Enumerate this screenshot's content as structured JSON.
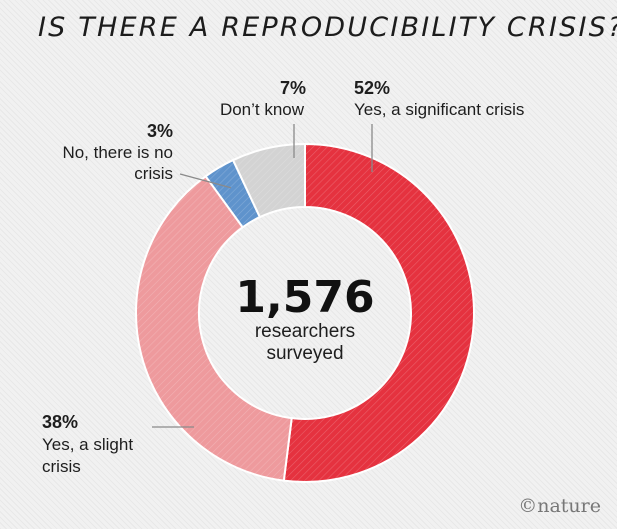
{
  "chart_data": {
    "type": "pie",
    "title": "IS THERE A REPRODUCIBILITY CRISIS?",
    "unit": "%",
    "slices": [
      {
        "label": "Yes, a significant crisis",
        "value": 52,
        "display": "52%",
        "color": "#e5323f"
      },
      {
        "label": "Yes, a slight crisis",
        "value": 38,
        "display": "38%",
        "color": "#ee9a9d"
      },
      {
        "label": "No, there is no crisis",
        "value": 3,
        "display": "3%",
        "color": "#5f93cc"
      },
      {
        "label": "Don’t know",
        "value": 7,
        "display": "7%",
        "color": "#d3d3d3"
      }
    ],
    "center": {
      "number": "1,576",
      "line1": "researchers",
      "line2": "surveyed"
    }
  },
  "annotations": {
    "significant": {
      "pct": "52%",
      "line1": "Yes, a significant crisis"
    },
    "dont_know": {
      "pct": "7%",
      "line1": "Don’t know"
    },
    "no_crisis": {
      "pct": "3%",
      "line1": "No, there is no",
      "line2": "crisis"
    },
    "slight": {
      "pct": "38%",
      "line1": "Yes, a slight",
      "line2": "crisis"
    }
  },
  "credit": "©nature"
}
